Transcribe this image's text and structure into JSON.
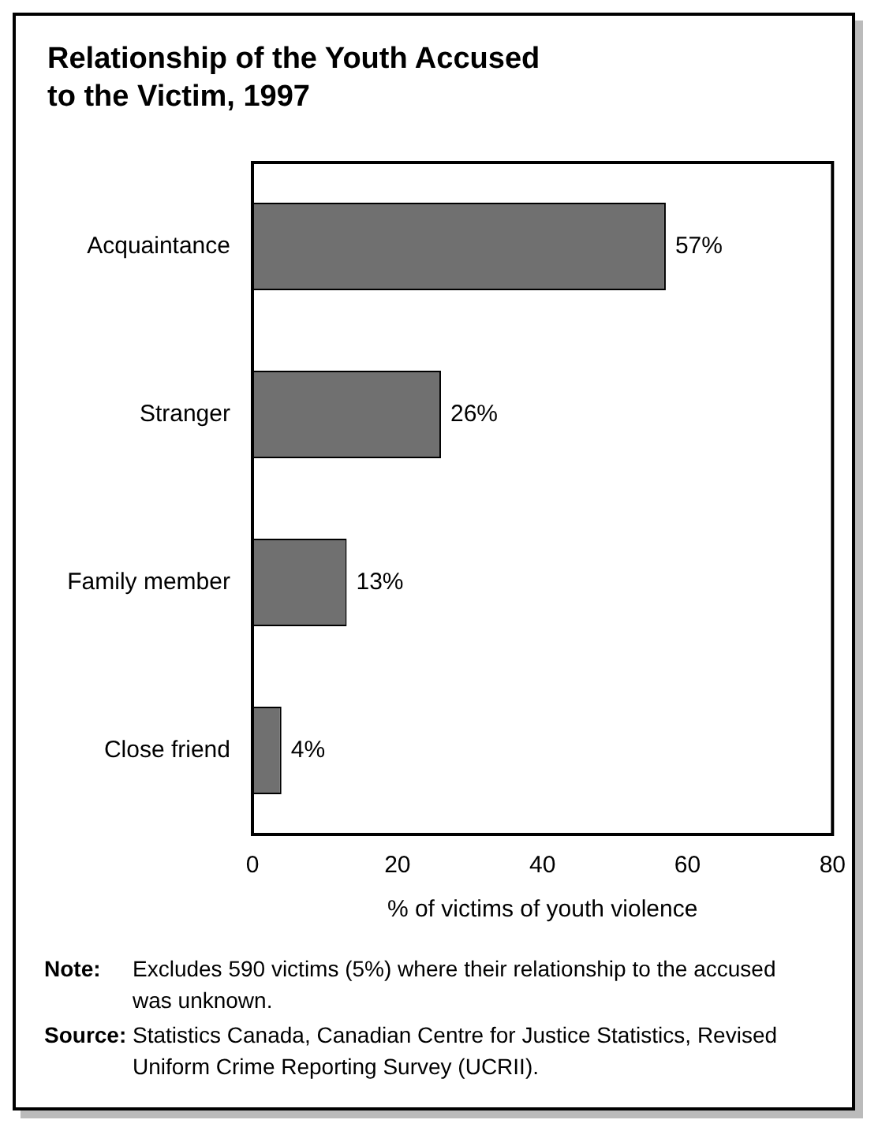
{
  "chart_data": {
    "type": "bar",
    "orientation": "horizontal",
    "title": "Relationship of the Youth Accused to the Victim, 1997",
    "categories": [
      "Acquaintance",
      "Stranger",
      "Family member",
      "Close friend"
    ],
    "values": [
      57,
      26,
      13,
      4
    ],
    "value_labels": [
      "57%",
      "26%",
      "13%",
      "4%"
    ],
    "color": "#707070",
    "xlabel": "% of victims of youth violence",
    "xlim": [
      0,
      80
    ],
    "xticks": [
      0,
      20,
      40,
      60,
      80
    ],
    "annotations": [
      "Note: Excludes 590 victims (5%) where their relationship to the accused was unknown.",
      "Source: Statistics Canada, Canadian Centre for Justice Statistics, Revised Uniform Crime Reporting Survey (UCRII)."
    ]
  }
}
